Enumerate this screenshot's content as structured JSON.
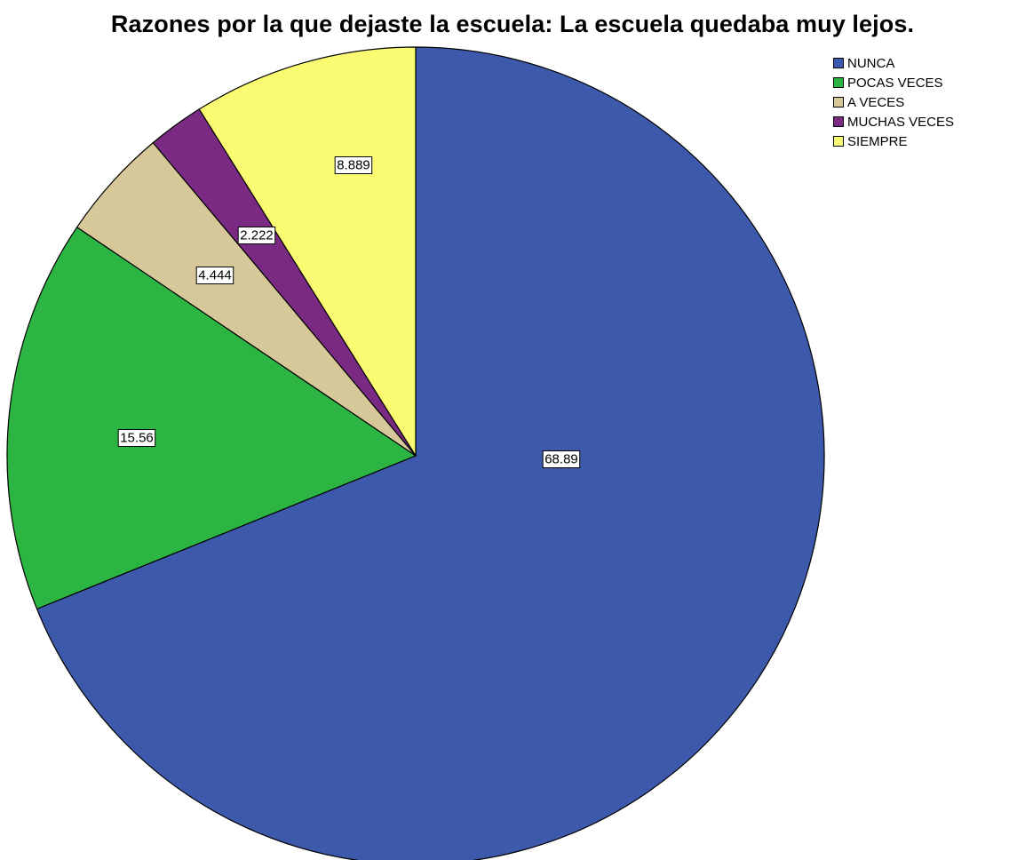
{
  "chart_data": {
    "type": "pie",
    "title": "Razones por la que dejaste la escuela: La escuela quedaba muy lejos.",
    "categories": [
      "NUNCA",
      "POCAS VECES",
      "A VECES",
      "MUCHAS VECES",
      "SIEMPRE"
    ],
    "values": [
      68.89,
      15.56,
      4.444,
      2.222,
      8.889
    ],
    "value_labels": [
      "68.89",
      "15.56",
      "4.444",
      "2.222",
      "8.889"
    ],
    "colors": [
      "#3d59ab",
      "#2db544",
      "#d6c898",
      "#7b2a83",
      "#fbfb73"
    ],
    "start_angle": "12 o'clock",
    "direction": "clockwise",
    "legend_position": "top-right"
  }
}
